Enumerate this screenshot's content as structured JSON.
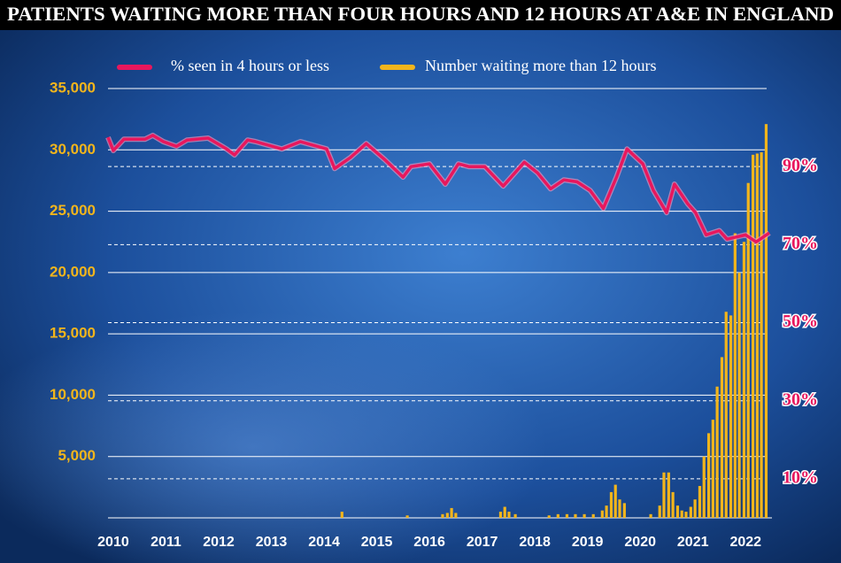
{
  "chart_data": {
    "type": "combo",
    "title": "PATIENTS WAITING MORE THAN FOUR HOURS AND 12 HOURS AT A&E IN ENGLAND",
    "series": [
      {
        "name": "% seen in 4 hours or less",
        "color": "#e8175d",
        "type": "line",
        "axis": "y2",
        "x": [
          2009.9,
          2010.0,
          2010.2,
          2010.6,
          2010.75,
          2010.95,
          2011.2,
          2011.4,
          2011.8,
          2012.15,
          2012.3,
          2012.55,
          2012.7,
          2013.2,
          2013.55,
          2014.05,
          2014.2,
          2014.5,
          2014.8,
          2015.15,
          2015.5,
          2015.65,
          2016.0,
          2016.3,
          2016.55,
          2016.75,
          2017.05,
          2017.4,
          2017.55,
          2017.8,
          2018.05,
          2018.3,
          2018.55,
          2018.8,
          2019.05,
          2019.3,
          2019.55,
          2019.75,
          2020.05,
          2020.25,
          2020.5,
          2020.65,
          2020.9,
          2021.05,
          2021.25,
          2021.5,
          2021.65,
          2022.0,
          2022.2,
          2022.45
        ],
        "values": [
          97.5,
          94.1,
          97,
          97,
          98,
          96.4,
          95.2,
          96.8,
          97.3,
          94.5,
          93,
          96.8,
          96.4,
          94.5,
          96.4,
          94.5,
          89.5,
          92.3,
          95.9,
          91.8,
          87.3,
          90,
          90.7,
          85.5,
          90.7,
          90,
          90,
          85,
          87.3,
          91.1,
          88.4,
          84.3,
          86.6,
          86.1,
          83.9,
          79.3,
          87.3,
          94.5,
          90.7,
          83.9,
          78.2,
          85.5,
          80.5,
          78.2,
          72.5,
          73.6,
          71.4,
          72.5,
          70.7,
          73
        ]
      },
      {
        "name": "Number waiting more than 12 hours",
        "color": "#f2b51c",
        "type": "bar",
        "axis": "y",
        "x": [
          2014.34,
          2015.58,
          2016.25,
          2016.34,
          2016.42,
          2016.5,
          2017.35,
          2017.43,
          2017.51,
          2017.63,
          2018.27,
          2018.44,
          2018.61,
          2018.77,
          2018.94,
          2019.11,
          2019.28,
          2019.36,
          2019.45,
          2019.53,
          2019.61,
          2019.7,
          2020.2,
          2020.37,
          2020.45,
          2020.54,
          2020.62,
          2020.71,
          2020.79,
          2020.87,
          2020.96,
          2021.04,
          2021.13,
          2021.21,
          2021.3,
          2021.38,
          2021.46,
          2021.55,
          2021.63,
          2021.72,
          2021.8,
          2021.88,
          2021.97,
          2022.05,
          2022.14,
          2022.22,
          2022.3,
          2022.39
        ],
        "values": [
          500,
          200,
          300,
          400,
          800,
          400,
          500,
          900,
          500,
          300,
          200,
          300,
          300,
          300,
          300,
          300,
          600,
          1000,
          2100,
          2700,
          1500,
          1200,
          300,
          1000,
          3700,
          3700,
          2100,
          1000,
          600,
          500,
          900,
          1500,
          2600,
          5000,
          6900,
          8000,
          10700,
          13100,
          16800,
          16500,
          23200,
          20000,
          22500,
          27300,
          29600,
          29700,
          29800,
          32100
        ]
      }
    ],
    "xlim": [
      2009.9,
      2022.5
    ],
    "xticks": [
      2010,
      2011,
      2012,
      2013,
      2014,
      2015,
      2016,
      2017,
      2018,
      2019,
      2020,
      2021,
      2022
    ],
    "ylim": [
      0,
      35000
    ],
    "yticks": [
      {
        "value": 5000,
        "label": "5,000"
      },
      {
        "value": 10000,
        "label": "10,000"
      },
      {
        "value": 15000,
        "label": "15,000"
      },
      {
        "value": 20000,
        "label": "20,000"
      },
      {
        "value": 25000,
        "label": "25,000"
      },
      {
        "value": 30000,
        "label": "30,000"
      },
      {
        "value": 35000,
        "label": "35,000"
      }
    ],
    "y2lim": [
      0,
      110
    ],
    "y2ticks": [
      {
        "value": 10,
        "label": "10%"
      },
      {
        "value": 30,
        "label": "30%"
      },
      {
        "value": 50,
        "label": "50%"
      },
      {
        "value": 70,
        "label": "70%"
      },
      {
        "value": 90,
        "label": "90%"
      }
    ],
    "grid": true,
    "legend": "top"
  }
}
